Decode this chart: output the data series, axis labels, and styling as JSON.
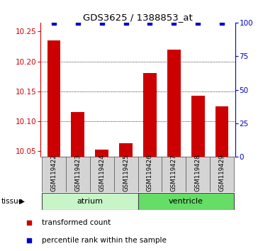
{
  "title": "GDS3625 / 1388853_at",
  "samples": [
    "GSM119422",
    "GSM119423",
    "GSM119424",
    "GSM119425",
    "GSM119426",
    "GSM119427",
    "GSM119428",
    "GSM119429"
  ],
  "red_values": [
    10.235,
    10.115,
    10.052,
    10.063,
    10.18,
    10.22,
    10.143,
    10.125
  ],
  "blue_values": [
    100,
    100,
    100,
    100,
    100,
    100,
    100,
    100
  ],
  "ylim_left": [
    10.04,
    10.265
  ],
  "ylim_right": [
    0,
    100
  ],
  "yticks_left": [
    10.05,
    10.1,
    10.15,
    10.2,
    10.25
  ],
  "yticks_right": [
    0,
    25,
    50,
    75,
    100
  ],
  "grid_lines": [
    10.1,
    10.15,
    10.2
  ],
  "tissue_groups": [
    {
      "label": "atrium",
      "start": 0,
      "end": 3,
      "color": "#c8f5c8"
    },
    {
      "label": "ventricle",
      "start": 4,
      "end": 7,
      "color": "#66dd66"
    }
  ],
  "legend_items": [
    {
      "label": "transformed count",
      "color": "#cc0000"
    },
    {
      "label": "percentile rank within the sample",
      "color": "#0000cc"
    }
  ],
  "bar_color": "#cc0000",
  "blue_marker_color": "#0000cc",
  "tick_color_left": "#cc0000",
  "tick_color_right": "#0000cc",
  "bar_width": 0.55,
  "baseline": 10.04,
  "xlim": [
    -0.55,
    7.55
  ]
}
